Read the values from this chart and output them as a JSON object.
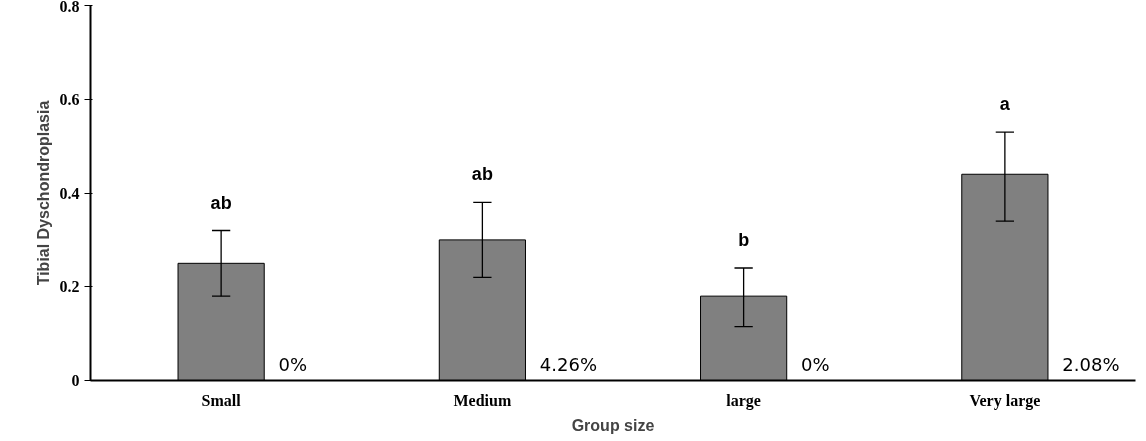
{
  "chart_data": {
    "type": "bar",
    "xlabel": "Group size",
    "ylabel": "Tibial Dyschondroplasia",
    "categories": [
      "Small",
      "Medium",
      "large",
      "Very large"
    ],
    "values": [
      0.25,
      0.3,
      0.18,
      0.44
    ],
    "color": "#808080",
    "errors": [
      [
        0.18,
        0.32
      ],
      [
        0.22,
        0.38
      ],
      [
        0.115,
        0.24
      ],
      [
        0.34,
        0.53
      ]
    ],
    "ylim": [
      0,
      0.8
    ],
    "yticks": [
      {
        "value": 0,
        "label": "0"
      },
      0.2,
      0.4,
      0.6,
      0.8
    ],
    "grid": false,
    "annotations": [
      {
        "text": "ab",
        "x": "Small",
        "y": 0.32
      },
      {
        "text": "ab",
        "x": "Medium",
        "y": 0.38
      },
      {
        "text": "b",
        "x": "large",
        "y": 0.24
      },
      {
        "text": "a",
        "x": "Very large",
        "y": 0.53
      },
      "0%",
      "4.26%",
      "0%",
      "2.08%"
    ]
  }
}
